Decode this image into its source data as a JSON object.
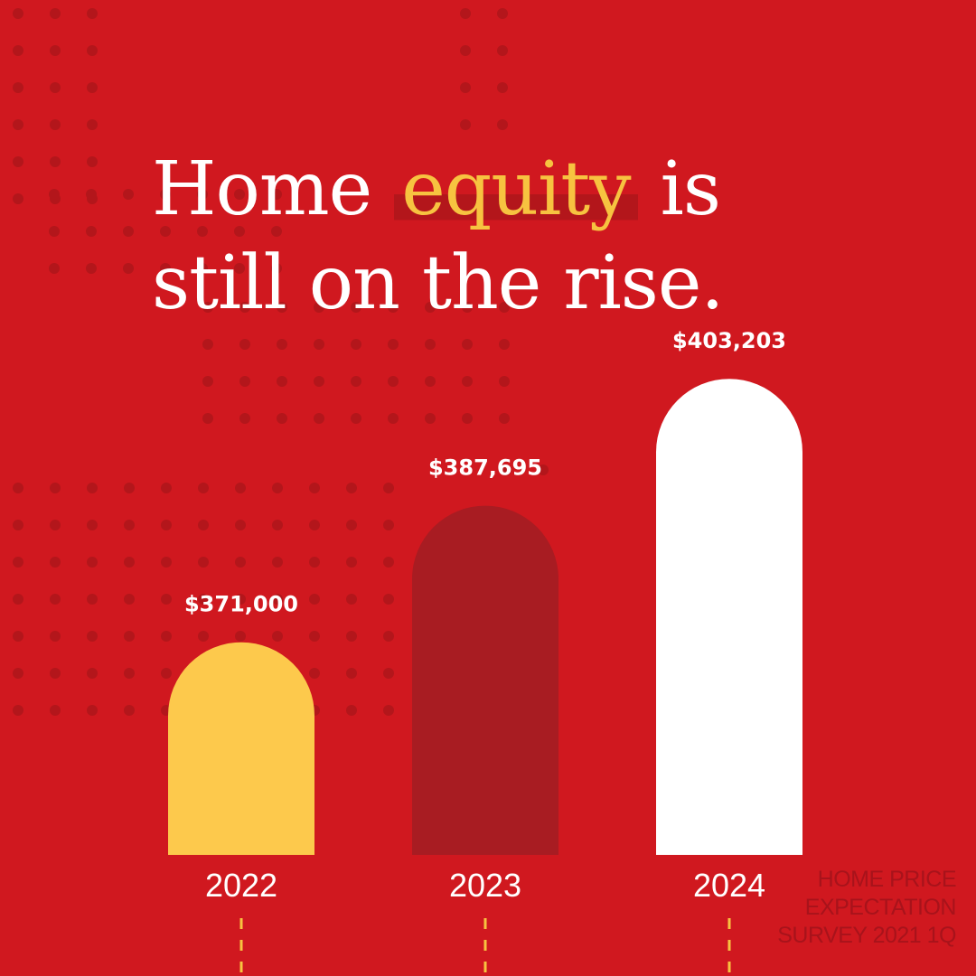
{
  "headline": {
    "before": "Home ",
    "highlight": "equity",
    "after": " is still on the rise."
  },
  "source_note": "HOME PRICE EXPECTATION SURVEY 2021 1Q",
  "colors": {
    "background": "#d0181f",
    "highlight_text": "#f7c340",
    "dot": "#b3161b",
    "source_text": "#a8131b",
    "dashes": "#f7c340"
  },
  "chart_data": {
    "type": "bar",
    "categories": [
      "2022",
      "2023",
      "2024"
    ],
    "values": [
      371000,
      387695,
      403203
    ],
    "value_labels": [
      "$371,000",
      "$387,695",
      "$403,203"
    ],
    "bar_colors": [
      "#fdc94c",
      "#a81c22",
      "#ffffff"
    ],
    "title": "",
    "xlabel": "",
    "ylabel": "",
    "grid": false,
    "legend": "none"
  }
}
